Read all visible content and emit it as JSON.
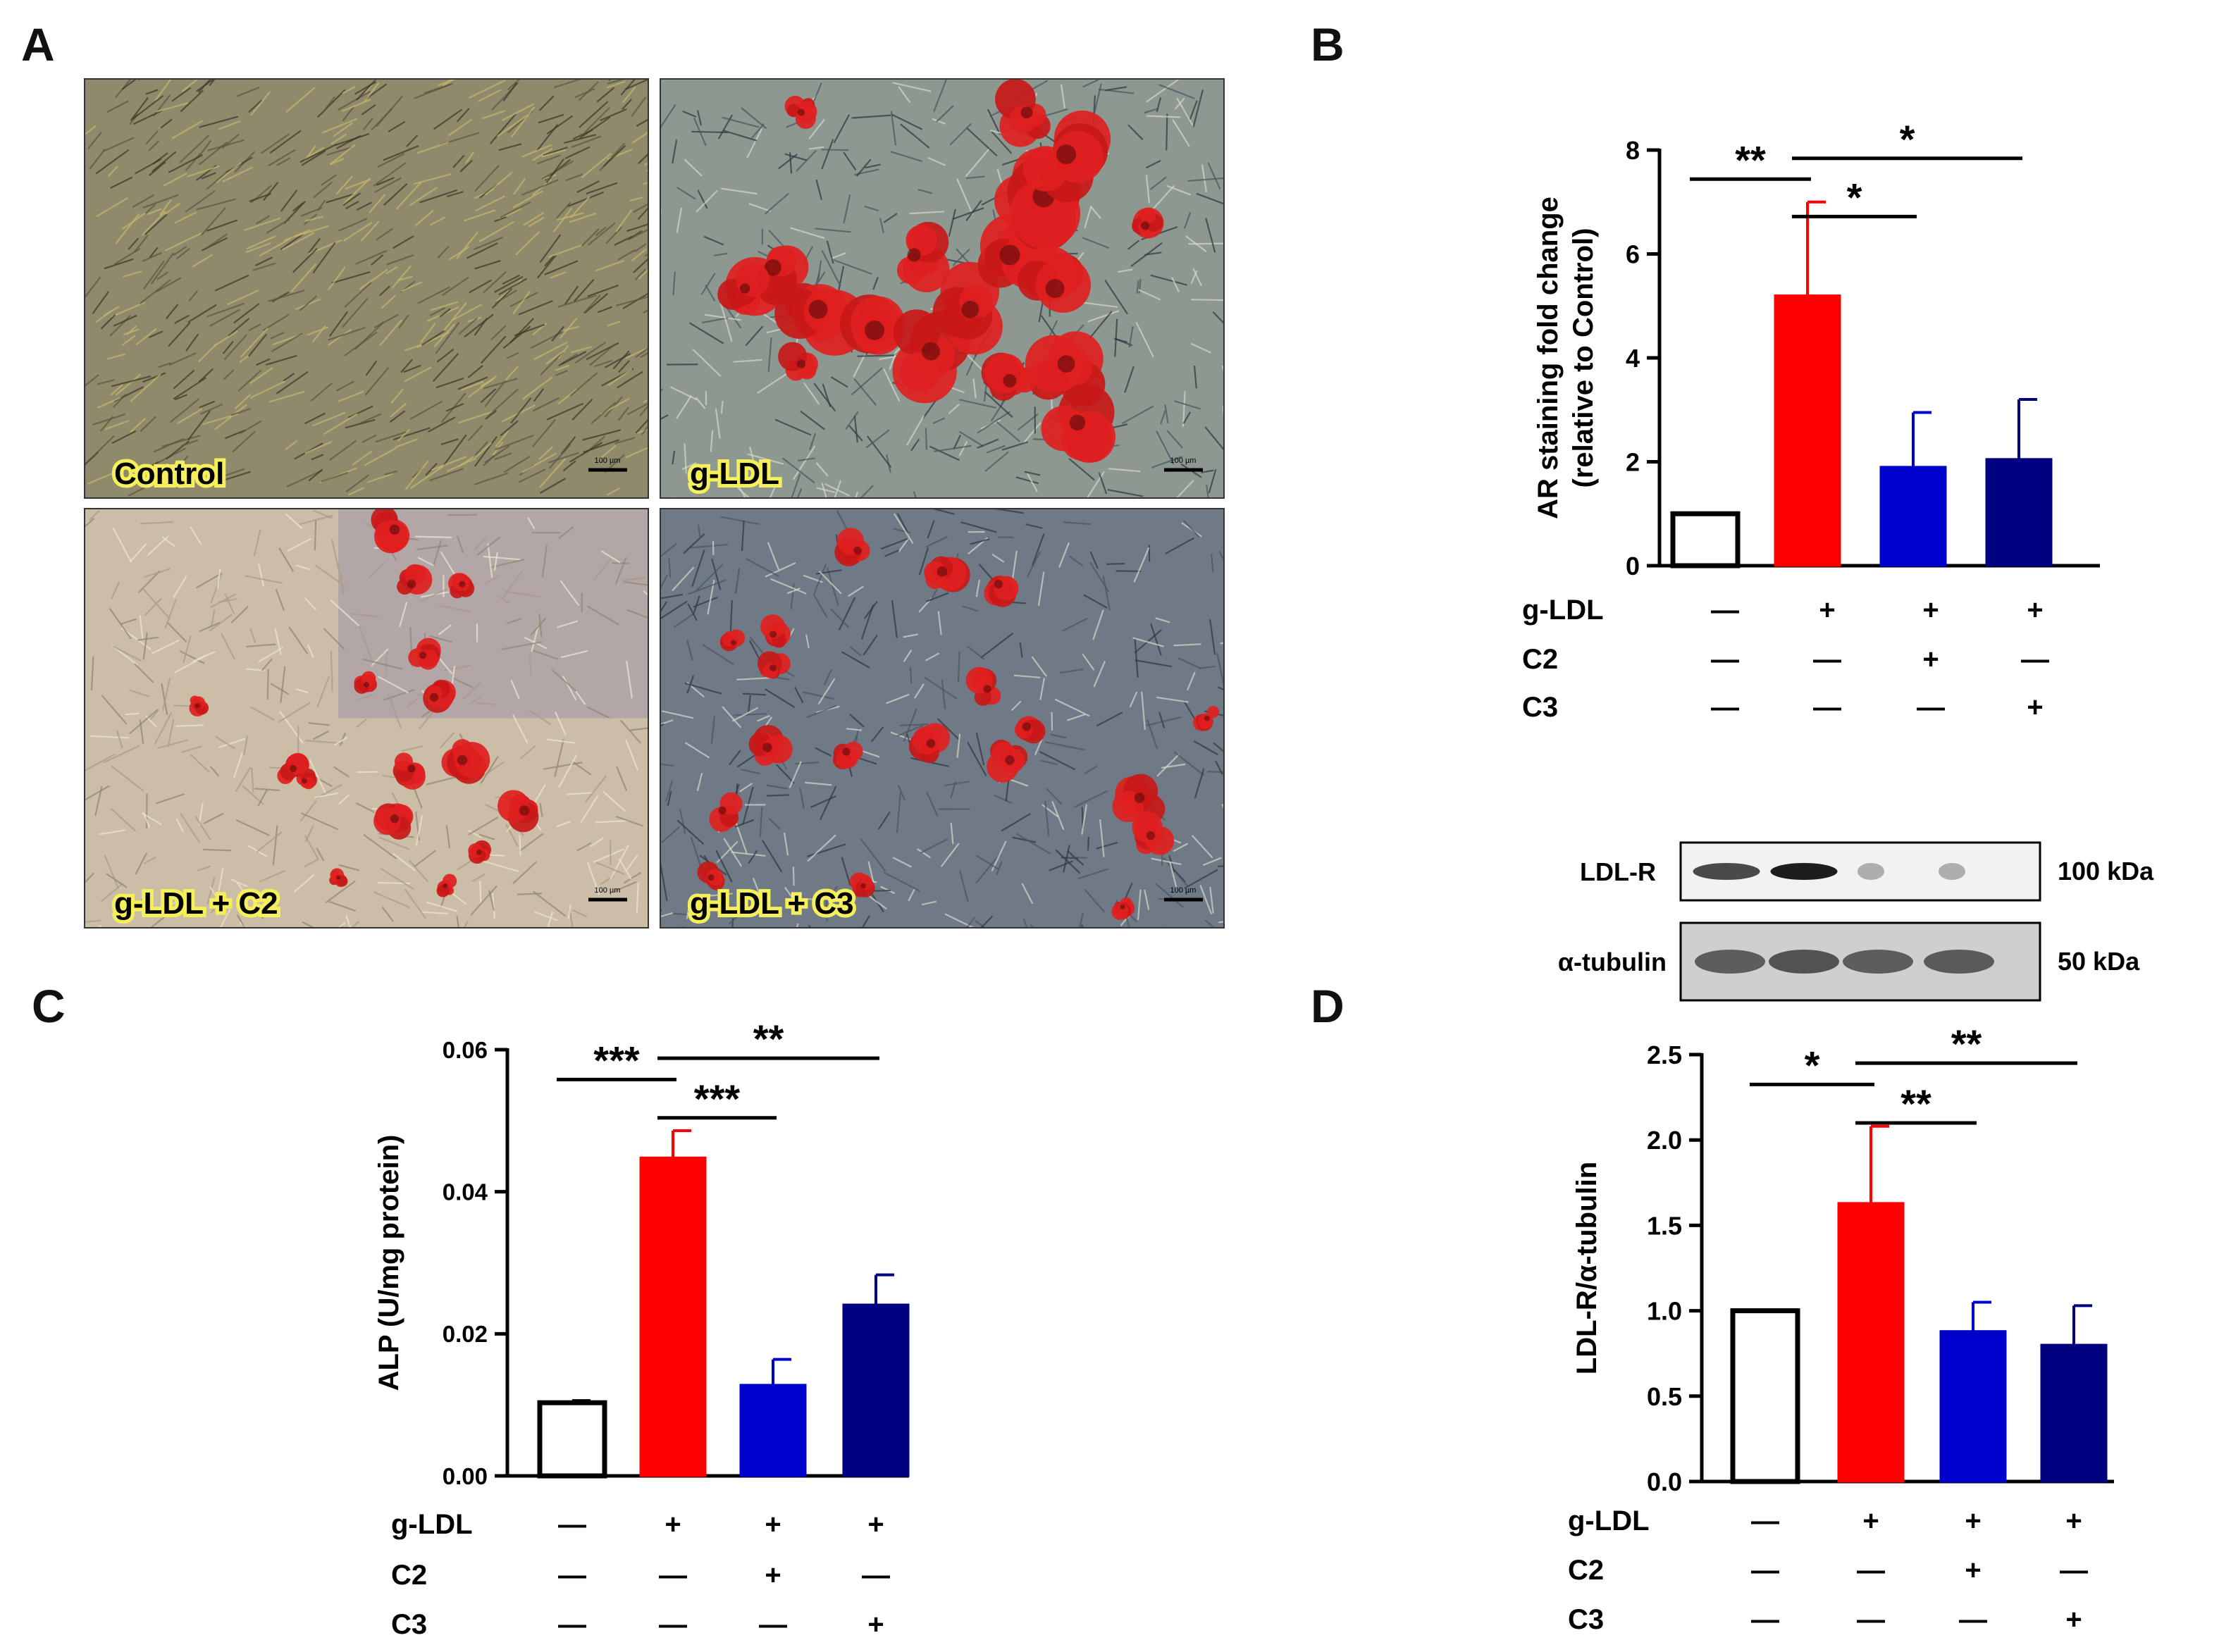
{
  "panel_labels": {
    "a": "A",
    "b": "B",
    "c": "C",
    "d": "D"
  },
  "micrographs": [
    {
      "label": "Control",
      "style": "control",
      "bg": "#8f8a6c"
    },
    {
      "label": "g-LDL",
      "style": "gldl",
      "bg": "#8c9890"
    },
    {
      "label": "g-LDL + C2",
      "style": "c2",
      "bg": "#cbbda6"
    },
    {
      "label": "g-LDL + C3",
      "style": "c3",
      "bg": "#6f7a86"
    }
  ],
  "scale_bar_text": "100 µm",
  "condition_rows": [
    {
      "label": "g-LDL",
      "marks": [
        "—",
        "+",
        "+",
        "+"
      ]
    },
    {
      "label": "C2",
      "marks": [
        "—",
        "—",
        "+",
        "—"
      ]
    },
    {
      "label": "C3",
      "marks": [
        "—",
        "—",
        "—",
        "+"
      ]
    }
  ],
  "bar_colors": [
    "#ffffff",
    "#ff0000",
    "#0000cc",
    "#000080"
  ],
  "bar_edge_colors": [
    "#000000",
    "#ff0000",
    "#0000cc",
    "#000080"
  ],
  "western_blot": {
    "bands": [
      {
        "label": "LDL-R",
        "size": "100 kDa",
        "intensities": [
          0.75,
          0.95,
          0.3,
          0.3
        ]
      },
      {
        "label": "α-tubulin",
        "size": "50 kDa",
        "intensities": [
          0.6,
          0.65,
          0.6,
          0.62
        ]
      }
    ]
  },
  "chart_data": [
    {
      "type": "bar",
      "panel": "B",
      "ylabel": "AR staining fold change",
      "ylabel2": "(relative to Control)",
      "ylim": [
        0,
        8
      ],
      "yticks": [
        "0",
        "2",
        "4",
        "6",
        "8"
      ],
      "values": [
        1.0,
        5.2,
        1.9,
        2.05
      ],
      "errors": [
        0,
        1.8,
        1.05,
        1.15
      ],
      "significance": [
        {
          "from": 0,
          "to": 1,
          "label": "**"
        },
        {
          "from": 1,
          "to": 2,
          "label": "*"
        },
        {
          "from": 1,
          "to": 3,
          "label": "*"
        }
      ]
    },
    {
      "type": "bar",
      "panel": "C",
      "ylabel": "ALP (U/mg protein)",
      "ylim": [
        0,
        0.06
      ],
      "yticks": [
        "0.00",
        "0.02",
        "0.04",
        "0.06"
      ],
      "values": [
        0.0103,
        0.0448,
        0.0128,
        0.0241
      ],
      "errors": [
        0.0003,
        0.0038,
        0.0036,
        0.0042
      ],
      "significance": [
        {
          "from": 0,
          "to": 1,
          "label": "***"
        },
        {
          "from": 1,
          "to": 2,
          "label": "***"
        },
        {
          "from": 1,
          "to": 3,
          "label": "**"
        }
      ]
    },
    {
      "type": "bar",
      "panel": "D",
      "ylabel": "LDL-R/α-tubulin",
      "ylim": [
        0,
        2.5
      ],
      "yticks": [
        "0.0",
        "0.5",
        "1.0",
        "1.5",
        "2.0",
        "2.5"
      ],
      "values": [
        1.0,
        1.63,
        0.88,
        0.8
      ],
      "errors": [
        0,
        0.45,
        0.17,
        0.23
      ],
      "significance": [
        {
          "from": 0,
          "to": 1,
          "label": "*"
        },
        {
          "from": 1,
          "to": 2,
          "label": "**"
        },
        {
          "from": 1,
          "to": 3,
          "label": "**"
        }
      ]
    }
  ]
}
